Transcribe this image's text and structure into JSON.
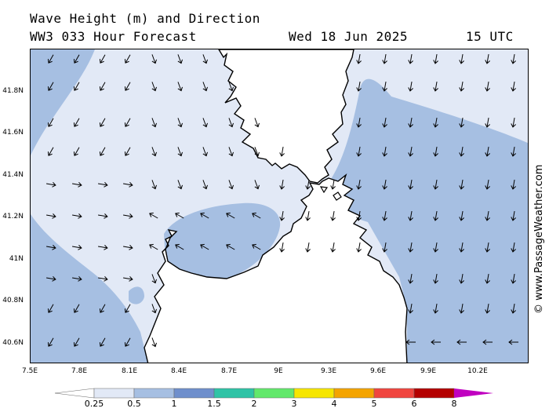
{
  "header": {
    "line1": "Wave Height (m) and Direction",
    "line2": "WW3 033 Hour Forecast",
    "date": "Wed 18 Jun 2025",
    "time": "15 UTC"
  },
  "axes": {
    "lat_labels": [
      "41.8N",
      "41.6N",
      "41.4N",
      "41.2N",
      "41N",
      "40.8N",
      "40.6N"
    ],
    "lon_labels": [
      "7.5E",
      "7.8E",
      "8.1E",
      "8.4E",
      "8.7E",
      "9E",
      "9.3E",
      "9.6E",
      "9.9E",
      "10.2E"
    ]
  },
  "watermark": "© www.PassageWeather.com",
  "legend": {
    "labels": [
      "0.25",
      "0.5",
      "1",
      "1.5",
      "2",
      "3",
      "4",
      "5",
      "6",
      "8"
    ],
    "colors": [
      "#ffffff",
      "#e2e9f6",
      "#a6bfe2",
      "#6f8fcc",
      "#2fc3a6",
      "#62e86b",
      "#f6e600",
      "#f4a400",
      "#f0453f",
      "#b40000",
      "#c000c0"
    ]
  },
  "map_colors": {
    "sea_low": "#e2e9f6",
    "sea_mid": "#a6bfe2",
    "land": "#ffffff",
    "coast": "#000000"
  }
}
